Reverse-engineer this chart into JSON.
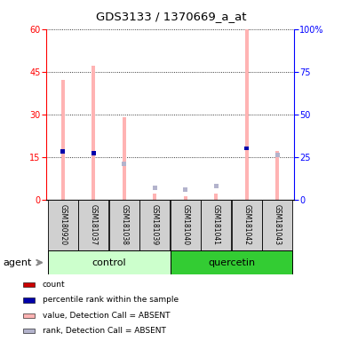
{
  "title": "GDS3133 / 1370669_a_at",
  "samples": [
    "GSM180920",
    "GSM181037",
    "GSM181038",
    "GSM181039",
    "GSM181040",
    "GSM181041",
    "GSM181042",
    "GSM181043"
  ],
  "groups": [
    "control",
    "control",
    "control",
    "control",
    "quercetin",
    "quercetin",
    "quercetin",
    "quercetin"
  ],
  "absent_value_bars": [
    42,
    47,
    29,
    2,
    1,
    2,
    60,
    17
  ],
  "absent_rank_bars": [
    28,
    27,
    21,
    7,
    6,
    8,
    0,
    26
  ],
  "present_rank_bars": [
    28,
    27,
    0,
    0,
    0,
    0,
    30,
    0
  ],
  "present_value_bars": [
    0,
    0,
    0,
    0,
    0,
    0,
    0,
    0
  ],
  "ylim_left": [
    0,
    60
  ],
  "ylim_right": [
    0,
    100
  ],
  "yticks_left": [
    0,
    15,
    30,
    45,
    60
  ],
  "yticks_right": [
    0,
    25,
    50,
    75,
    100
  ],
  "yticklabels_right": [
    "0",
    "25",
    "50",
    "75",
    "100%"
  ],
  "bar_color_present_value": "#cc0000",
  "bar_color_present_rank": "#0000aa",
  "bar_color_absent_value": "#ffb3b3",
  "bar_color_absent_rank": "#b3b3cc",
  "control_color_light": "#ccffcc",
  "control_color_dark": "#44dd44",
  "quercetin_color": "#33cc33",
  "control_label": "control",
  "quercetin_label": "quercetin",
  "agent_label": "agent",
  "legend_items": [
    {
      "label": "count",
      "color": "#cc0000"
    },
    {
      "label": "percentile rank within the sample",
      "color": "#0000aa"
    },
    {
      "label": "value, Detection Call = ABSENT",
      "color": "#ffb3b3"
    },
    {
      "label": "rank, Detection Call = ABSENT",
      "color": "#b3b3cc"
    }
  ]
}
